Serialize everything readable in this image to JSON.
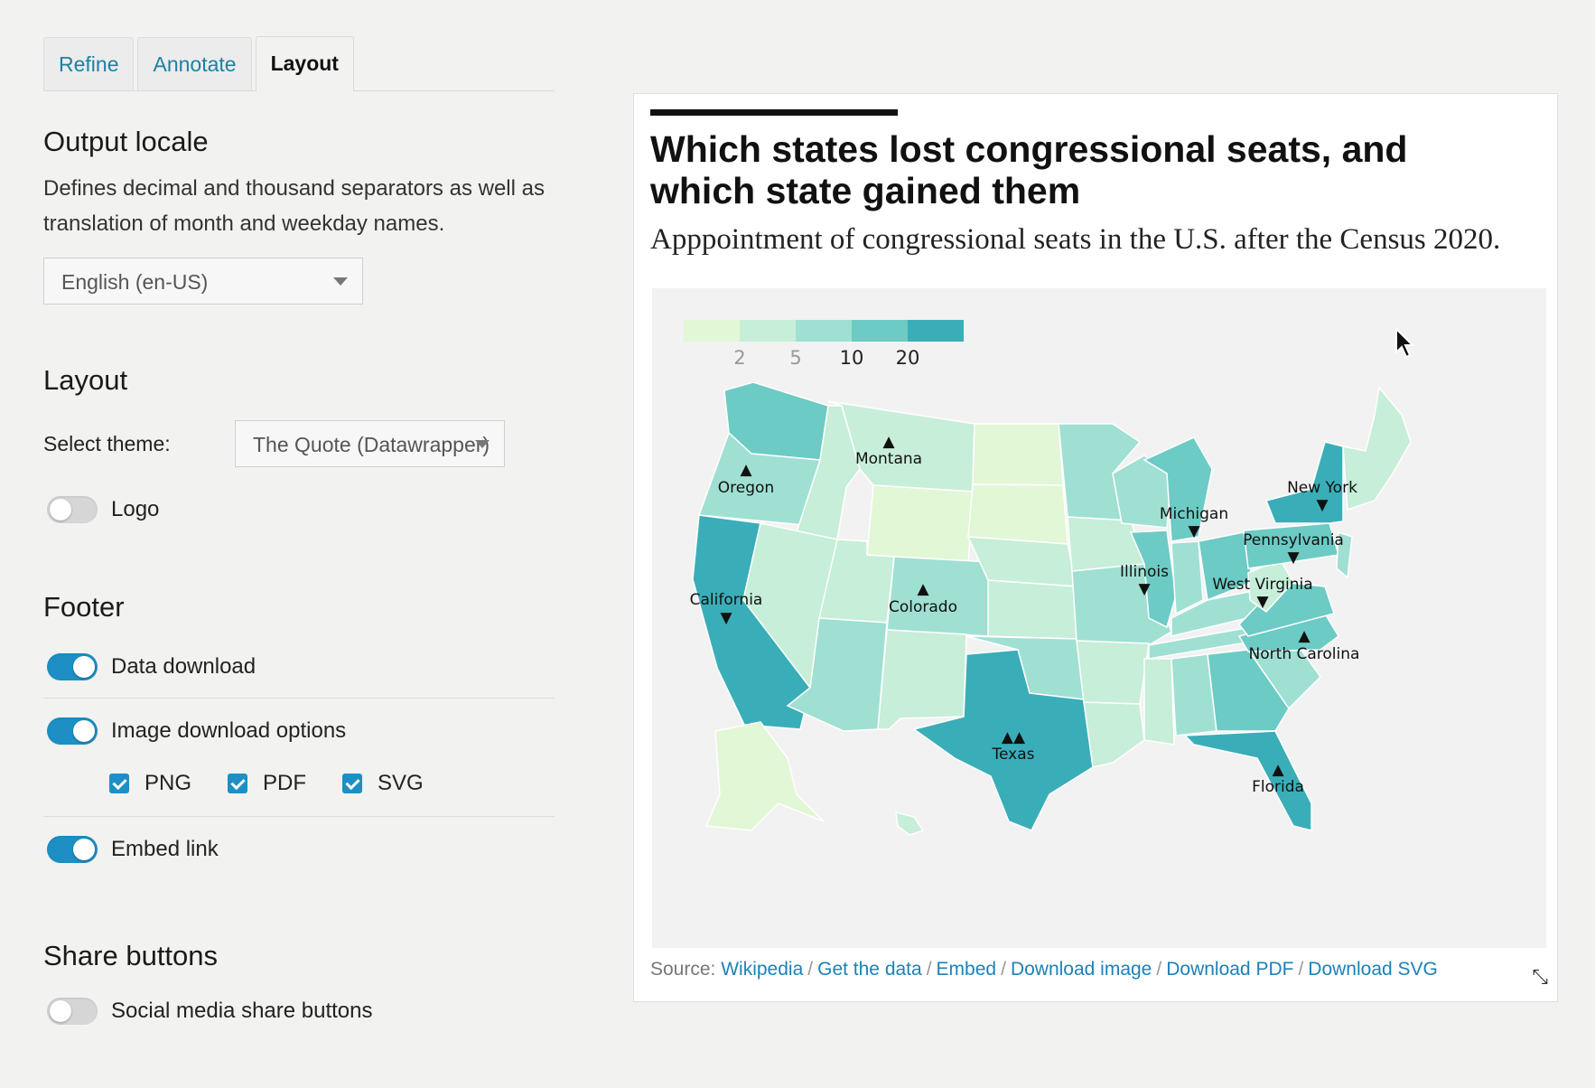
{
  "tabs": [
    {
      "label": "Refine",
      "active": false
    },
    {
      "label": "Annotate",
      "active": false
    },
    {
      "label": "Layout",
      "active": true
    }
  ],
  "output_locale": {
    "heading": "Output locale",
    "description": "Defines decimal and thousand separators as well as translation of month and weekday names.",
    "selected": "English (en-US)"
  },
  "layout": {
    "heading": "Layout",
    "theme_label": "Select theme:",
    "theme_value": "The Quote (Datawrapper)",
    "logo_label": "Logo",
    "logo_on": false
  },
  "footer_settings": {
    "heading": "Footer",
    "data_download_label": "Data download",
    "data_download_on": true,
    "image_download_label": "Image download options",
    "image_download_on": true,
    "formats": [
      {
        "label": "PNG",
        "checked": true
      },
      {
        "label": "PDF",
        "checked": true
      },
      {
        "label": "SVG",
        "checked": true
      }
    ],
    "embed_link_label": "Embed link",
    "embed_link_on": true
  },
  "share": {
    "heading": "Share buttons",
    "social_label": "Social media share buttons",
    "social_on": false
  },
  "chart": {
    "title": "Which states lost congressional seats, and which state gained them",
    "subtitle": "Apppointment of congressional seats in the U.S. after the Census 2020.",
    "legend": {
      "ticks": [
        "2",
        "5",
        "10",
        "20"
      ],
      "colors": [
        "#e2f7d6",
        "#c7eed8",
        "#9fe0d3",
        "#6ccbc4",
        "#3aaeb8"
      ]
    },
    "footer": {
      "source_label": "Source:",
      "source_link": "Wikipedia",
      "links": [
        "Get the data",
        "Embed",
        "Download image",
        "Download PDF",
        "Download SVG"
      ],
      "separator": "/"
    },
    "state_labels": [
      {
        "name": "Montana",
        "marker": "▲"
      },
      {
        "name": "Oregon",
        "marker": "▲"
      },
      {
        "name": "California",
        "marker": "▼"
      },
      {
        "name": "Colorado",
        "marker": "▲"
      },
      {
        "name": "Texas",
        "marker": "▲▲"
      },
      {
        "name": "Florida",
        "marker": "▲"
      },
      {
        "name": "North Carolina",
        "marker": "▲"
      },
      {
        "name": "West Virginia",
        "marker": "▼"
      },
      {
        "name": "Illinois",
        "marker": "▼"
      },
      {
        "name": "Michigan",
        "marker": "▼"
      },
      {
        "name": "Pennsylvania",
        "marker": "▼"
      },
      {
        "name": "New York",
        "marker": "▼"
      }
    ]
  }
}
